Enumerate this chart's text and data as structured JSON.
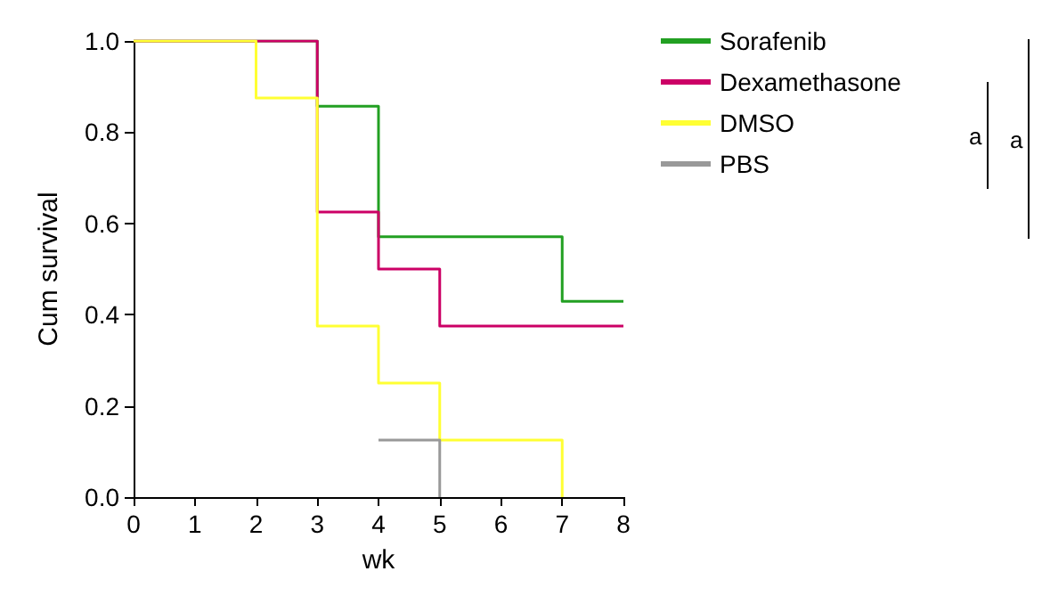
{
  "chart_data": {
    "type": "step",
    "xlabel": "wk",
    "ylabel": "Cum survival",
    "xlim": [
      0,
      8
    ],
    "xticks": [
      0,
      1,
      2,
      3,
      4,
      5,
      6,
      7,
      8
    ],
    "ylim": [
      0,
      1
    ],
    "yticks": [
      {
        "value": 0,
        "label": "0.0"
      },
      {
        "value": 0.2,
        "label": "0.2"
      },
      {
        "value": 0.4,
        "label": "0.4"
      },
      {
        "value": 0.6,
        "label": "0.6"
      },
      {
        "value": 0.8,
        "label": "0.8"
      },
      {
        "value": 1,
        "label": "1.0"
      }
    ],
    "grid": false,
    "legend": "top right",
    "annotations": [
      "a",
      "a"
    ],
    "series": [
      {
        "name": "Sorafenib",
        "color": "#22a022",
        "x": [
          0,
          3,
          4,
          7,
          8
        ],
        "values": [
          1,
          0.857,
          0.571,
          0.429,
          0.429
        ]
      },
      {
        "name": "Dexamethasone",
        "color": "#cc0066",
        "x": [
          0,
          3,
          4,
          5,
          8
        ],
        "values": [
          1,
          0.625,
          0.5,
          0.375,
          0.375
        ]
      },
      {
        "name": "DMSO",
        "color": "#ffff33",
        "x": [
          0,
          2,
          3,
          4,
          5,
          7
        ],
        "values": [
          1,
          0.875,
          0.375,
          0.25,
          0.125,
          0
        ]
      },
      {
        "name": "PBS",
        "color": "#999999",
        "x": [
          4,
          5
        ],
        "values": [
          0.125,
          0
        ]
      }
    ]
  }
}
